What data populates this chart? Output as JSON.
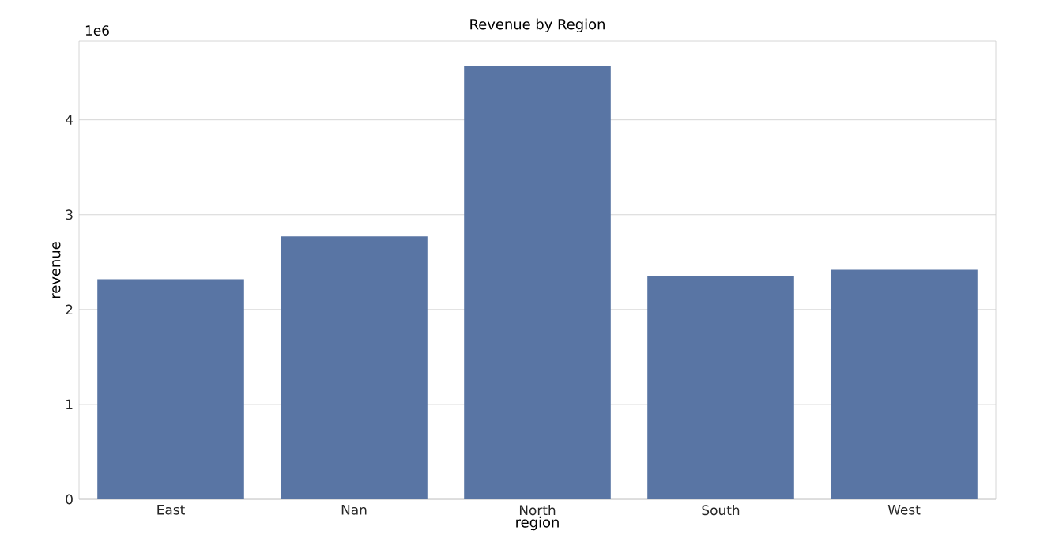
{
  "chart_data": {
    "type": "bar",
    "title": "Revenue by Region",
    "xlabel": "region",
    "ylabel": "revenue",
    "categories": [
      "East",
      "Nan",
      "North",
      "South",
      "West"
    ],
    "values": [
      2.32,
      2.77,
      4.57,
      2.35,
      2.42
    ],
    "color": "#5975a4",
    "ylim": [
      0,
      4.83
    ],
    "yticks": [
      0,
      1,
      2,
      3,
      4
    ],
    "grid": "y",
    "annotations": [
      "1e6"
    ]
  }
}
